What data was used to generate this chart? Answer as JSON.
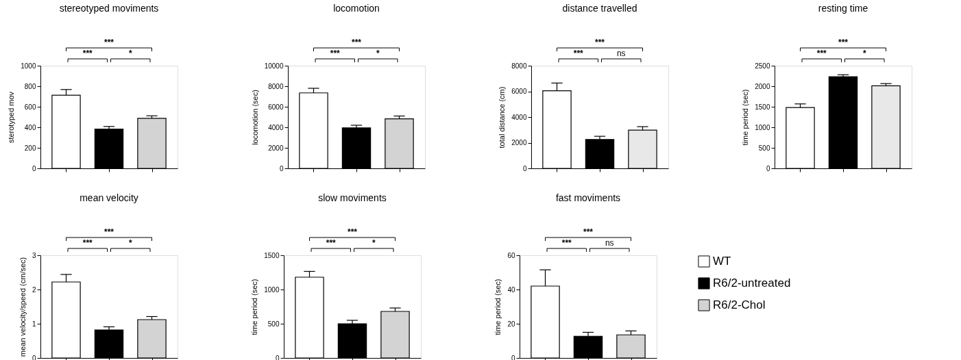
{
  "chart_data": [
    {
      "type": "bar",
      "title": "stereotyped moviments",
      "ylabel": "sterotyped mov",
      "categories": [
        null,
        null,
        null
      ],
      "ylim": [
        0,
        1000
      ],
      "yticks": [
        0,
        200,
        400,
        600,
        800,
        1000
      ],
      "tick_labels": "y",
      "grid": false,
      "legend": false,
      "series": [
        {
          "color": "#ffffff",
          "values": [
            713,
            null,
            null
          ],
          "errors": [
            [
              713,
              768
            ],
            null,
            null
          ]
        },
        {
          "color": "#000000",
          "values": [
            null,
            383,
            null
          ],
          "errors": [
            null,
            [
              383,
              408
            ],
            null
          ]
        },
        {
          "color": "#d3d3d3",
          "values": [
            null,
            null,
            487
          ],
          "errors": [
            null,
            null,
            [
              487,
              512
            ]
          ]
        }
      ],
      "annotations": [
        "***",
        "***",
        "*"
      ]
    },
    {
      "type": "bar",
      "title": "locomotion",
      "ylabel": "locomotion (sec)",
      "categories": [
        null,
        null,
        null
      ],
      "ylim": [
        0,
        10000
      ],
      "yticks": [
        0,
        2000,
        4000,
        6000,
        8000,
        10000
      ],
      "tick_labels": "y",
      "grid": false,
      "legend": false,
      "series": [
        {
          "color": "#ffffff",
          "values": [
            7350,
            null,
            null
          ],
          "errors": [
            [
              7350,
              7800
            ],
            null,
            null
          ]
        },
        {
          "color": "#000000",
          "values": [
            null,
            3950,
            null
          ],
          "errors": [
            null,
            [
              3950,
              4200
            ],
            null
          ]
        },
        {
          "color": "#d3d3d3",
          "values": [
            null,
            null,
            4820
          ],
          "errors": [
            null,
            null,
            [
              4820,
              5100
            ]
          ]
        }
      ],
      "annotations": [
        "***",
        "***",
        "*"
      ]
    },
    {
      "type": "bar",
      "title": "distance travelled",
      "ylabel": "total distance (cm)",
      "categories": [
        null,
        null,
        null
      ],
      "ylim": [
        0,
        8000
      ],
      "yticks": [
        0,
        2000,
        4000,
        6000,
        8000
      ],
      "tick_labels": "y",
      "grid": false,
      "legend": false,
      "series": [
        {
          "color": "#ffffff",
          "values": [
            6050,
            null,
            null
          ],
          "errors": [
            [
              6050,
              6650
            ],
            null,
            null
          ]
        },
        {
          "color": "#000000",
          "values": [
            null,
            2250,
            null
          ],
          "errors": [
            null,
            [
              2250,
              2500
            ],
            null
          ]
        },
        {
          "color": "#e8e8e8",
          "values": [
            null,
            null,
            2980
          ],
          "errors": [
            null,
            null,
            [
              2980,
              3250
            ]
          ]
        }
      ],
      "annotations": [
        "***",
        "***",
        "ns"
      ]
    },
    {
      "type": "bar",
      "title": "resting time",
      "ylabel": "time period (sec)",
      "categories": [
        null,
        null,
        null
      ],
      "ylim": [
        0,
        2500
      ],
      "yticks": [
        0,
        500,
        1000,
        1500,
        2000,
        2500
      ],
      "tick_labels": "y",
      "grid": false,
      "legend": false,
      "series": [
        {
          "color": "#ffffff",
          "values": [
            1480,
            null,
            null
          ],
          "errors": [
            [
              1480,
              1570
            ],
            null,
            null
          ]
        },
        {
          "color": "#000000",
          "values": [
            null,
            2230,
            null
          ],
          "errors": [
            null,
            [
              2230,
              2280
            ],
            null
          ]
        },
        {
          "color": "#e8e8e8",
          "values": [
            null,
            null,
            2010
          ],
          "errors": [
            null,
            null,
            [
              2010,
              2065
            ]
          ]
        }
      ],
      "annotations": [
        "***",
        "***",
        "*"
      ]
    },
    {
      "type": "bar",
      "title": "mean velocity",
      "ylabel": "mean velocity/speed (cm/sec)",
      "categories": [
        null,
        null,
        null
      ],
      "ylim": [
        0,
        3
      ],
      "yticks": [
        0,
        1,
        2,
        3
      ],
      "tick_labels": "y",
      "grid": false,
      "legend": false,
      "series": [
        {
          "color": "#ffffff",
          "values": [
            2.22,
            null,
            null
          ],
          "errors": [
            [
              2.22,
              2.44
            ],
            null,
            null
          ]
        },
        {
          "color": "#000000",
          "values": [
            null,
            0.82,
            null
          ],
          "errors": [
            null,
            [
              0.82,
              0.91
            ],
            null
          ]
        },
        {
          "color": "#d3d3d3",
          "values": [
            null,
            null,
            1.12
          ],
          "errors": [
            null,
            null,
            [
              1.12,
              1.21
            ]
          ]
        }
      ],
      "annotations": [
        "***",
        "***",
        "*"
      ]
    },
    {
      "type": "bar",
      "title": "slow moviments",
      "ylabel": "time period (sec)",
      "categories": [
        null,
        null,
        null
      ],
      "ylim": [
        0,
        1500
      ],
      "yticks": [
        0,
        500,
        1000,
        1500
      ],
      "tick_labels": "y",
      "grid": false,
      "legend": false,
      "series": [
        {
          "color": "#ffffff",
          "values": [
            1180,
            null,
            null
          ],
          "errors": [
            [
              1180,
              1265
            ],
            null,
            null
          ]
        },
        {
          "color": "#000000",
          "values": [
            null,
            500,
            null
          ],
          "errors": [
            null,
            [
              500,
              550
            ],
            null
          ]
        },
        {
          "color": "#d3d3d3",
          "values": [
            null,
            null,
            680
          ],
          "errors": [
            null,
            null,
            [
              680,
              730
            ]
          ]
        }
      ],
      "annotations": [
        "***",
        "***",
        "*"
      ]
    },
    {
      "type": "bar",
      "title": "fast moviments",
      "ylabel": "time period (sec)",
      "categories": [
        null,
        null,
        null
      ],
      "ylim": [
        0,
        60
      ],
      "yticks": [
        0,
        20,
        40,
        60
      ],
      "tick_labels": "y",
      "grid": false,
      "legend": "right",
      "series": [
        {
          "name": "WT",
          "color": "#ffffff",
          "values": [
            42,
            null,
            null
          ],
          "errors": [
            [
              42,
              51.5
            ],
            null,
            null
          ]
        },
        {
          "name": "R6/2-untreated",
          "color": "#000000",
          "values": [
            null,
            12.7,
            null
          ],
          "errors": [
            null,
            [
              12.7,
              15
            ],
            null
          ]
        },
        {
          "name": "R6/2-Chol",
          "color": "#d3d3d3",
          "values": [
            null,
            null,
            13.5
          ],
          "errors": [
            null,
            null,
            [
              13.5,
              15.8
            ]
          ]
        }
      ],
      "annotations": [
        "***",
        "***",
        "ns"
      ]
    }
  ]
}
